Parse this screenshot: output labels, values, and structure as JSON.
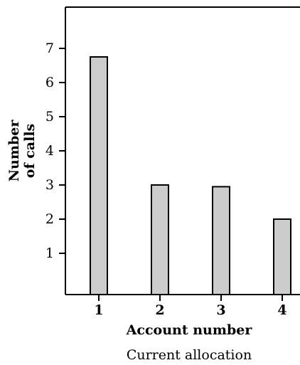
{
  "chart_data": {
    "type": "bar",
    "categories": [
      "1",
      "2",
      "3",
      "4"
    ],
    "values": [
      6.75,
      3.0,
      2.95,
      2.0
    ],
    "xlabel": "Account number",
    "ylabel_lines": [
      "Number",
      "of calls"
    ],
    "yticks": [
      1,
      2,
      3,
      4,
      5,
      6,
      7
    ],
    "ylim": [
      0,
      8.2
    ],
    "grid": false,
    "caption": "Current allocation",
    "colors": {
      "bar_fill": "#cccccc",
      "bar_stroke": "#000000",
      "axis": "#000000"
    }
  }
}
